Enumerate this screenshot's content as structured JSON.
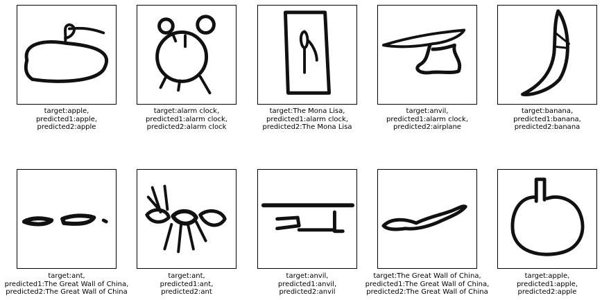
{
  "panels": [
    {
      "target": "target:apple,",
      "p1": "predicted1:apple,",
      "p2": "predicted2:apple",
      "icon": "apple-sketch"
    },
    {
      "target": "target:alarm clock,",
      "p1": "predicted1:alarm clock,",
      "p2": "predicted2:alarm clock",
      "icon": "alarm-clock-sketch"
    },
    {
      "target": "target:The Mona Lisa,",
      "p1": "predicted1:alarm clock,",
      "p2": "predicted2:The Mona Lisa",
      "icon": "mona-lisa-sketch"
    },
    {
      "target": "target:anvil,",
      "p1": "predicted1:alarm clock,",
      "p2": "predicted2:airplane",
      "icon": "anvil-sketch"
    },
    {
      "target": "target:banana,",
      "p1": "predicted1:banana,",
      "p2": "predicted2:banana",
      "icon": "banana-sketch"
    },
    {
      "target": "target:ant,",
      "p1": "predicted1:The Great Wall of China,",
      "p2": "predicted2:The Great Wall of China",
      "icon": "ant-sketch"
    },
    {
      "target": "target:ant,",
      "p1": "predicted1:ant,",
      "p2": "predicted2:ant",
      "icon": "ant-sketch"
    },
    {
      "target": "target:anvil,",
      "p1": "predicted1:anvil,",
      "p2": "predicted2:anvil",
      "icon": "anvil-sketch"
    },
    {
      "target": "target:The Great Wall of China,",
      "p1": "predicted1:The Great Wall of China,",
      "p2": "predicted2:The Great Wall of China",
      "icon": "great-wall-sketch"
    },
    {
      "target": "target:apple,",
      "p1": "predicted1:apple,",
      "p2": "predicted2:apple",
      "icon": "apple-sketch"
    }
  ]
}
